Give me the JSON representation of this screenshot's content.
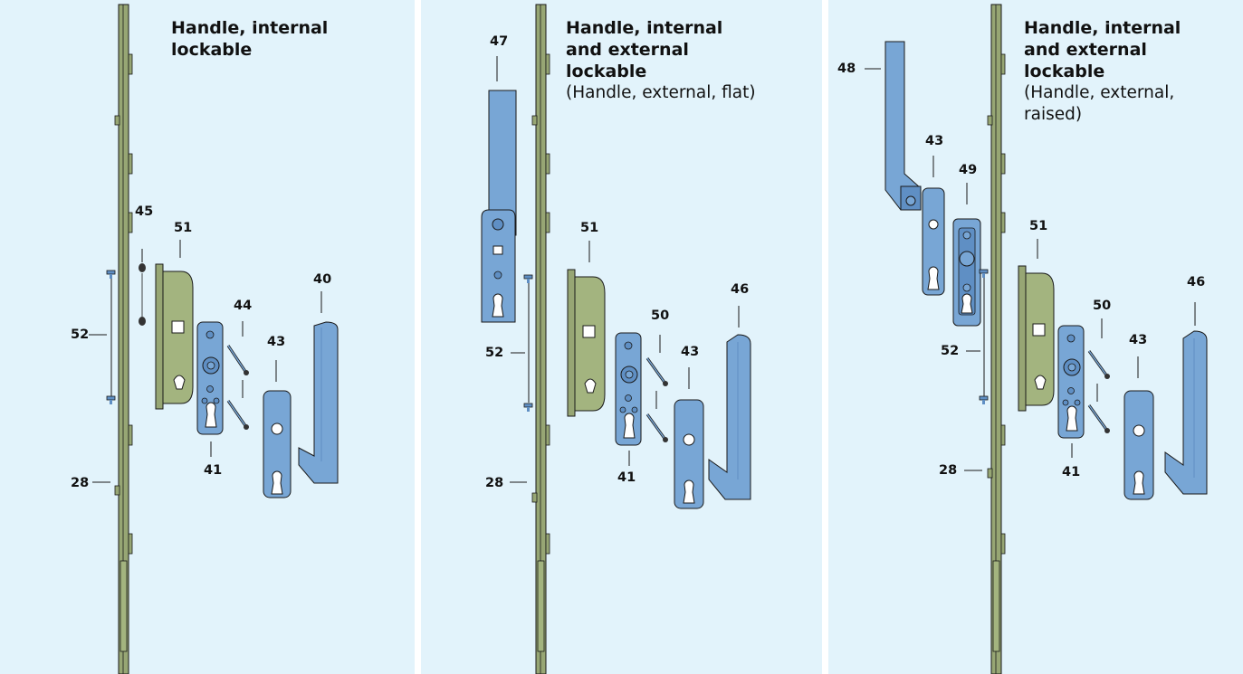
{
  "panels": [
    {
      "title_lines": [
        "Handle, internal",
        "lockable"
      ],
      "subtitle_lines": [],
      "labels": {
        "l45": "45",
        "l51": "51",
        "l40": "40",
        "l44": "44",
        "l52": "52",
        "l43": "43",
        "l41": "41",
        "l28": "28"
      }
    },
    {
      "title_lines": [
        "Handle, internal",
        "and external",
        "lockable"
      ],
      "subtitle_lines": [
        "(Handle, external, flat)"
      ],
      "labels": {
        "l47": "47",
        "l51": "51",
        "l46": "46",
        "l50": "50",
        "l52": "52",
        "l43": "43",
        "l41": "41",
        "l28": "28"
      }
    },
    {
      "title_lines": [
        "Handle, internal",
        "and external",
        "lockable"
      ],
      "subtitle_lines": [
        "(Handle, external,",
        "raised)"
      ],
      "labels": {
        "l48": "48",
        "l43a": "43",
        "l49": "49",
        "l51": "51",
        "l46": "46",
        "l50": "50",
        "l52": "52",
        "l43b": "43",
        "l41": "41",
        "l28": "28"
      }
    }
  ],
  "colors": {
    "background": "#e2f3fb",
    "hardware_blue": "#78a6d5",
    "gearbox_green": "#a3b47f",
    "rail_green": "#8b9a6c",
    "outline": "#1a1a1a"
  }
}
